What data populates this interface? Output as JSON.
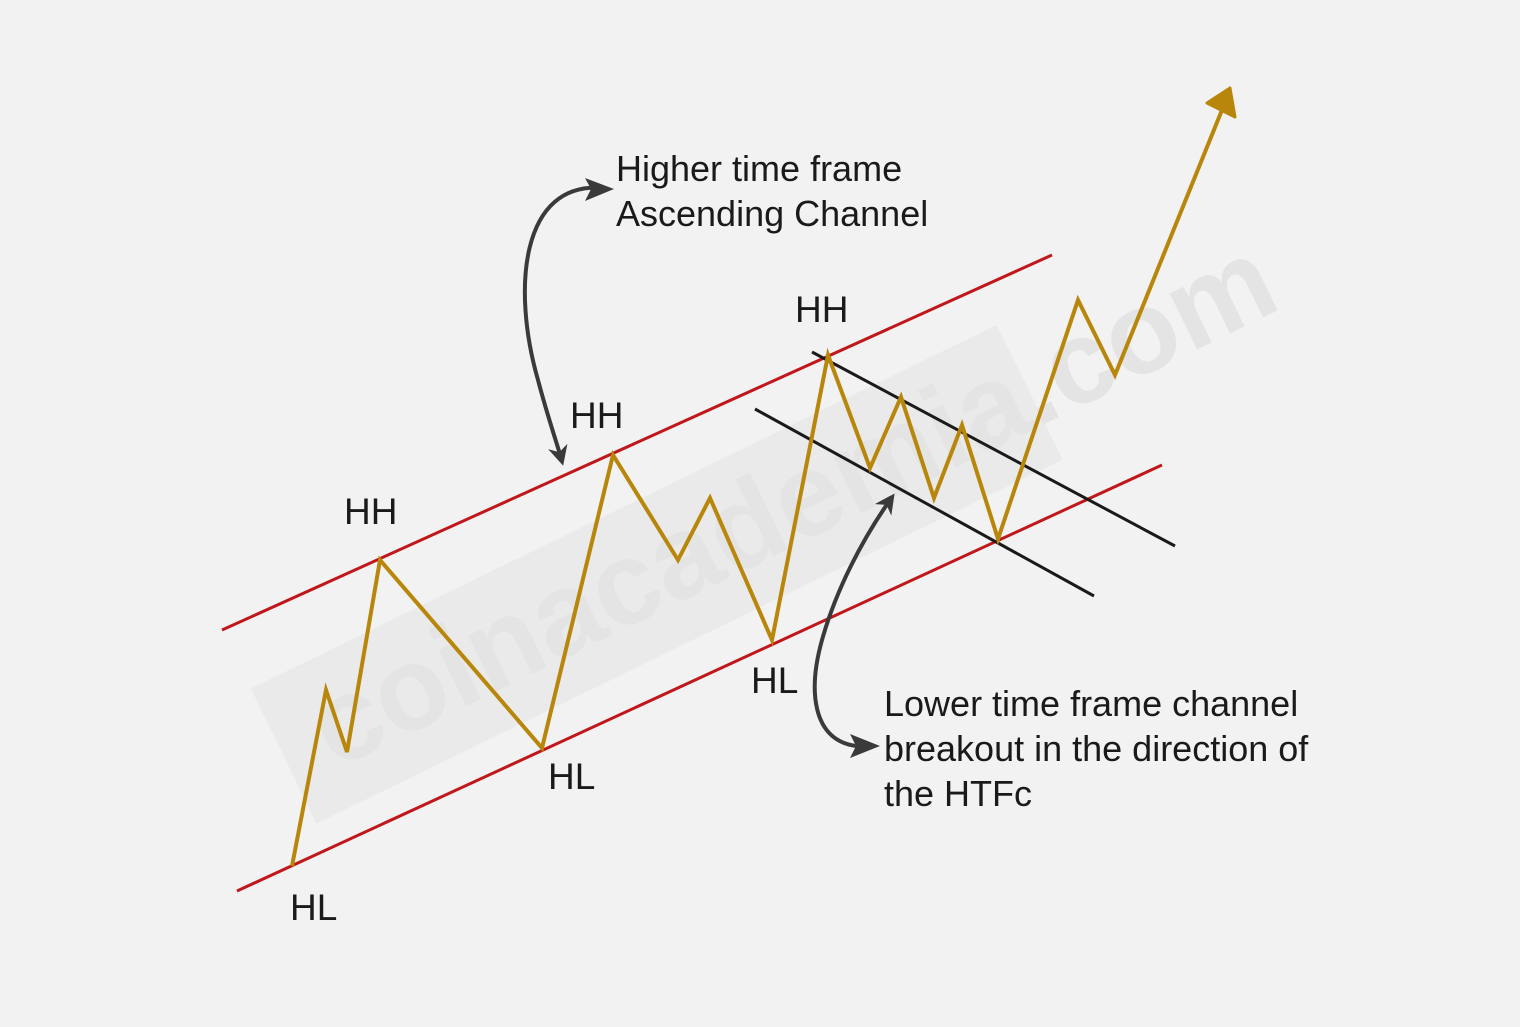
{
  "watermark": "coinacademia.com",
  "colors": {
    "background": "#f2f2f2",
    "htf_channel": "#c0171b",
    "ltf_channel": "#1a1a1a",
    "price_path": "#b8860b",
    "annotation_arrow": "#3a3a3a",
    "text": "#1a1a1a"
  },
  "pivot_labels": [
    {
      "id": "hl-1",
      "text": "HL"
    },
    {
      "id": "hh-1",
      "text": "HH"
    },
    {
      "id": "hl-2",
      "text": "HL"
    },
    {
      "id": "hh-2",
      "text": "HH"
    },
    {
      "id": "hl-3",
      "text": "HL"
    },
    {
      "id": "hh-3",
      "text": "HH"
    }
  ],
  "annotations": {
    "htf": {
      "lines": [
        "Higher time frame",
        "Ascending Channel"
      ]
    },
    "ltf": {
      "lines": [
        "Lower time frame channel",
        "breakout in the direction of",
        "the HTFc"
      ]
    }
  }
}
